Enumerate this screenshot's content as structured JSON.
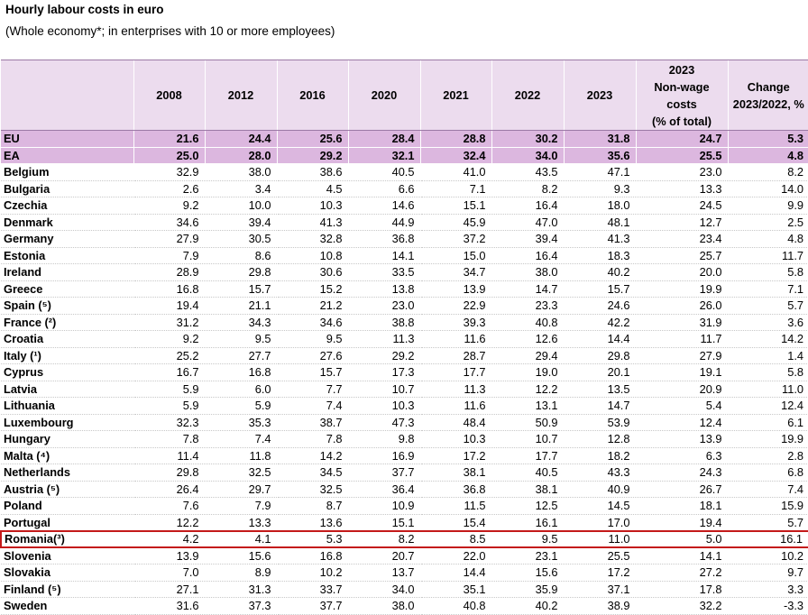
{
  "title": "Hourly labour costs in euro",
  "subtitle": "(Whole economy*; in enterprises with 10 or more employees)",
  "accent_colors": {
    "header_bg": "#ecdcee",
    "aggregate_bg": "#dcb7df",
    "highlight_border": "#c41a1a"
  },
  "chart_data": {
    "type": "table",
    "title": "Hourly labour costs in euro",
    "subtitle": "(Whole economy*; in enterprises with 10 or more employees)",
    "columns": [
      "",
      "2008",
      "2012",
      "2016",
      "2020",
      "2021",
      "2022",
      "2023",
      "2023\nNon-wage\ncosts\n(% of total)",
      "Change\n2023/2022, %"
    ],
    "highlighted_row": "Romania(³)",
    "rows": [
      {
        "label": "EU",
        "aggregate": true,
        "values": [
          "21.6",
          "24.4",
          "25.6",
          "28.4",
          "28.8",
          "30.2",
          "31.8",
          "24.7",
          "5.3"
        ]
      },
      {
        "label": "EA",
        "aggregate": true,
        "values": [
          "25.0",
          "28.0",
          "29.2",
          "32.1",
          "32.4",
          "34.0",
          "35.6",
          "25.5",
          "4.8"
        ]
      },
      {
        "label": "Belgium",
        "values": [
          "32.9",
          "38.0",
          "38.6",
          "40.5",
          "41.0",
          "43.5",
          "47.1",
          "23.0",
          "8.2"
        ]
      },
      {
        "label": "Bulgaria",
        "values": [
          "2.6",
          "3.4",
          "4.5",
          "6.6",
          "7.1",
          "8.2",
          "9.3",
          "13.3",
          "14.0"
        ]
      },
      {
        "label": "Czechia",
        "values": [
          "9.2",
          "10.0",
          "10.3",
          "14.6",
          "15.1",
          "16.4",
          "18.0",
          "24.5",
          "9.9"
        ]
      },
      {
        "label": "Denmark",
        "values": [
          "34.6",
          "39.4",
          "41.3",
          "44.9",
          "45.9",
          "47.0",
          "48.1",
          "12.7",
          "2.5"
        ]
      },
      {
        "label": "Germany",
        "values": [
          "27.9",
          "30.5",
          "32.8",
          "36.8",
          "37.2",
          "39.4",
          "41.3",
          "23.4",
          "4.8"
        ]
      },
      {
        "label": "Estonia",
        "values": [
          "7.9",
          "8.6",
          "10.8",
          "14.1",
          "15.0",
          "16.4",
          "18.3",
          "25.7",
          "11.7"
        ]
      },
      {
        "label": "Ireland",
        "values": [
          "28.9",
          "29.8",
          "30.6",
          "33.5",
          "34.7",
          "38.0",
          "40.2",
          "20.0",
          "5.8"
        ]
      },
      {
        "label": "Greece",
        "values": [
          "16.8",
          "15.7",
          "15.2",
          "13.8",
          "13.9",
          "14.7",
          "15.7",
          "19.9",
          "7.1"
        ]
      },
      {
        "label": "Spain (⁵)",
        "values": [
          "19.4",
          "21.1",
          "21.2",
          "23.0",
          "22.9",
          "23.3",
          "24.6",
          "26.0",
          "5.7"
        ]
      },
      {
        "label": "France (²)",
        "values": [
          "31.2",
          "34.3",
          "34.6",
          "38.8",
          "39.3",
          "40.8",
          "42.2",
          "31.9",
          "3.6"
        ]
      },
      {
        "label": "Croatia",
        "values": [
          "9.2",
          "9.5",
          "9.5",
          "11.3",
          "11.6",
          "12.6",
          "14.4",
          "11.7",
          "14.2"
        ]
      },
      {
        "label": "Italy (¹)",
        "values": [
          "25.2",
          "27.7",
          "27.6",
          "29.2",
          "28.7",
          "29.4",
          "29.8",
          "27.9",
          "1.4"
        ]
      },
      {
        "label": "Cyprus",
        "values": [
          "16.7",
          "16.8",
          "15.7",
          "17.3",
          "17.7",
          "19.0",
          "20.1",
          "19.1",
          "5.8"
        ]
      },
      {
        "label": "Latvia",
        "values": [
          "5.9",
          "6.0",
          "7.7",
          "10.7",
          "11.3",
          "12.2",
          "13.5",
          "20.9",
          "11.0"
        ]
      },
      {
        "label": "Lithuania",
        "values": [
          "5.9",
          "5.9",
          "7.4",
          "10.3",
          "11.6",
          "13.1",
          "14.7",
          "5.4",
          "12.4"
        ]
      },
      {
        "label": "Luxembourg",
        "values": [
          "32.3",
          "35.3",
          "38.7",
          "47.3",
          "48.4",
          "50.9",
          "53.9",
          "12.4",
          "6.1"
        ]
      },
      {
        "label": "Hungary",
        "values": [
          "7.8",
          "7.4",
          "7.8",
          "9.8",
          "10.3",
          "10.7",
          "12.8",
          "13.9",
          "19.9"
        ]
      },
      {
        "label": "Malta (⁴)",
        "values": [
          "11.4",
          "11.8",
          "14.2",
          "16.9",
          "17.2",
          "17.7",
          "18.2",
          "6.3",
          "2.8"
        ]
      },
      {
        "label": "Netherlands",
        "values": [
          "29.8",
          "32.5",
          "34.5",
          "37.7",
          "38.1",
          "40.5",
          "43.3",
          "24.3",
          "6.8"
        ]
      },
      {
        "label": "Austria (⁵)",
        "values": [
          "26.4",
          "29.7",
          "32.5",
          "36.4",
          "36.8",
          "38.1",
          "40.9",
          "26.7",
          "7.4"
        ]
      },
      {
        "label": "Poland",
        "values": [
          "7.6",
          "7.9",
          "8.7",
          "10.9",
          "11.5",
          "12.5",
          "14.5",
          "18.1",
          "15.9"
        ]
      },
      {
        "label": "Portugal",
        "values": [
          "12.2",
          "13.3",
          "13.6",
          "15.1",
          "15.4",
          "16.1",
          "17.0",
          "19.4",
          "5.7"
        ]
      },
      {
        "label": "Romania(³)",
        "values": [
          "4.2",
          "4.1",
          "5.3",
          "8.2",
          "8.5",
          "9.5",
          "11.0",
          "5.0",
          "16.1"
        ]
      },
      {
        "label": "Slovenia",
        "values": [
          "13.9",
          "15.6",
          "16.8",
          "20.7",
          "22.0",
          "23.1",
          "25.5",
          "14.1",
          "10.2"
        ]
      },
      {
        "label": "Slovakia",
        "values": [
          "7.0",
          "8.9",
          "10.2",
          "13.7",
          "14.4",
          "15.6",
          "17.2",
          "27.2",
          "9.7"
        ]
      },
      {
        "label": "Finland (⁵)",
        "values": [
          "27.1",
          "31.3",
          "33.7",
          "34.0",
          "35.1",
          "35.9",
          "37.1",
          "17.8",
          "3.3"
        ]
      },
      {
        "label": "Sweden",
        "values": [
          "31.6",
          "37.3",
          "37.7",
          "38.0",
          "40.8",
          "40.2",
          "38.9",
          "32.2",
          "-3.3"
        ]
      }
    ]
  }
}
